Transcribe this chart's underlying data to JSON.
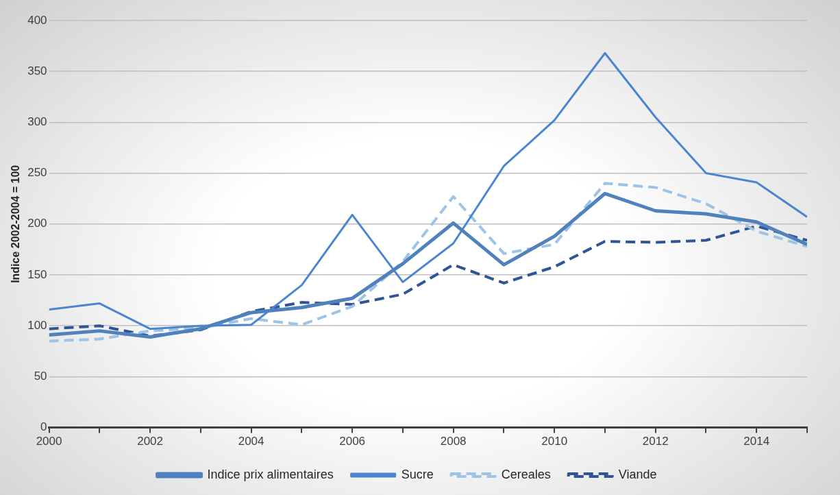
{
  "chart_data": {
    "type": "line",
    "ylabel": "Indice 2002-2004 = 100",
    "x": [
      2000,
      2001,
      2002,
      2003,
      2004,
      2005,
      2006,
      2007,
      2008,
      2009,
      2010,
      2011,
      2012,
      2013,
      2014,
      2015
    ],
    "series": [
      {
        "name": "Indice prix alimentaires",
        "color": "#4f81bd",
        "line_style": "solid",
        "values": [
          91,
          95,
          89,
          97,
          113,
          118,
          127,
          161,
          201,
          160,
          188,
          230,
          213,
          210,
          202,
          180
        ]
      },
      {
        "name": "Sucre",
        "color": "#4a86d0",
        "line_style": "solid",
        "values": [
          116,
          122,
          97,
          100,
          101,
          140,
          209,
          143,
          181,
          257,
          302,
          368,
          305,
          250,
          241,
          207
        ]
      },
      {
        "name": "Cereales",
        "color": "#9dc3e6",
        "line_style": "dashed",
        "values": [
          85,
          87,
          95,
          98,
          107,
          101,
          119,
          163,
          227,
          171,
          180,
          240,
          236,
          220,
          193,
          178
        ]
      },
      {
        "name": "Viande",
        "color": "#2f5597",
        "line_style": "dashed",
        "values": [
          97,
          100,
          90,
          96,
          114,
          123,
          121,
          131,
          160,
          142,
          158,
          183,
          182,
          184,
          198,
          184
        ]
      }
    ],
    "xlim": [
      2000,
      2015
    ],
    "xticks": [
      2000,
      {
        "value": 2001,
        "label": null
      },
      2002,
      {
        "value": 2003,
        "label": null
      },
      2004,
      {
        "value": 2005,
        "label": null
      },
      2006,
      {
        "value": 2007,
        "label": null
      },
      2008,
      {
        "value": 2009,
        "label": null
      },
      2010,
      {
        "value": 2011,
        "label": null
      },
      2012,
      {
        "value": 2013,
        "label": null
      },
      2014,
      {
        "value": 2015,
        "label": null
      }
    ],
    "ylim": [
      0,
      400
    ],
    "yticks": [
      0,
      50,
      100,
      150,
      200,
      250,
      300,
      350,
      400
    ],
    "grid": "y",
    "legend": "bottom",
    "marker": "none"
  }
}
